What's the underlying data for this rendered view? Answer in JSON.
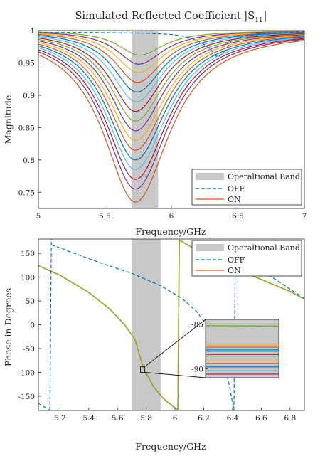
{
  "chart_data": [
    {
      "type": "line",
      "title": "Simulated Reflected Coefficient |S11|",
      "title_main": "Simulated Reflected Coefficient |S",
      "title_sub": "11",
      "title_end": "|",
      "xlabel": "Frequency/GHz",
      "ylabel": "Magnitude",
      "xlim": [
        5,
        7
      ],
      "ylim": [
        0.725,
        1.0
      ],
      "xticks": [
        5,
        5.5,
        6,
        6.5,
        7
      ],
      "yticks": [
        0.75,
        0.8,
        0.85,
        0.9,
        0.95,
        1
      ],
      "xtick_labels": [
        "5",
        "5.5",
        "6",
        "6.5",
        "7"
      ],
      "ytick_labels": [
        "0.75",
        "0.8",
        "0.85",
        "0.9",
        "0.95",
        "1"
      ],
      "band": [
        5.7,
        5.9
      ],
      "legend": [
        "Operaltional Band",
        "OFF",
        "ON"
      ],
      "legend_position": "bottom-right",
      "off_curve": {
        "x": [
          5,
          5.4,
          5.8,
          6.0,
          6.1,
          6.18,
          6.25,
          6.3,
          6.33,
          6.36,
          6.4,
          6.45,
          6.55,
          6.7,
          7.0
        ],
        "y": [
          0.997,
          0.997,
          0.996,
          0.994,
          0.991,
          0.986,
          0.978,
          0.97,
          0.961,
          0.96,
          0.968,
          0.984,
          0.992,
          0.996,
          0.998
        ]
      },
      "on_curves": {
        "resonance_ghz": [
          5.76,
          5.755,
          5.75,
          5.745,
          5.74,
          5.735,
          5.73,
          5.73,
          5.73,
          5.73,
          5.73,
          5.73,
          5.73,
          5.73,
          5.73,
          5.73
        ],
        "minimum": [
          0.962,
          0.948,
          0.935,
          0.92,
          0.905,
          0.89,
          0.875,
          0.86,
          0.845,
          0.83,
          0.815,
          0.8,
          0.785,
          0.77,
          0.755,
          0.735
        ],
        "colors": [
          "#77ac30",
          "#7e2f8e",
          "#edb120",
          "#d95319",
          "#0072bd",
          "#4dbeee",
          "#a2142f",
          "#77ac30",
          "#7e2f8e",
          "#edb120",
          "#d95319",
          "#0072bd",
          "#4dbeee",
          "#a2142f",
          "#7e2f8e",
          "#d95319"
        ]
      }
    },
    {
      "type": "line",
      "xlabel": "Frequency/GHz",
      "ylabel": "Phase in Degrees",
      "xlim": [
        5.05,
        6.9
      ],
      "ylim": [
        -180,
        180
      ],
      "xticks": [
        5.2,
        5.4,
        5.6,
        5.8,
        6,
        6.2,
        6.4,
        6.6,
        6.8
      ],
      "yticks": [
        -150,
        -100,
        -50,
        0,
        50,
        100,
        150
      ],
      "xtick_labels": [
        "5.2",
        "5.4",
        "5.6",
        "5.8",
        "6",
        "6.2",
        "6.4",
        "6.6",
        "6.8"
      ],
      "ytick_labels": [
        "-150",
        "-100",
        "-50",
        "0",
        "50",
        "100",
        "150"
      ],
      "band": [
        5.7,
        5.9
      ],
      "legend": [
        "Operaltional Band",
        "OFF",
        "ON"
      ],
      "legend_position": "top-right",
      "off_curve": {
        "segments": [
          {
            "x": [
              5.05,
              5.13
            ],
            "y": [
              -165,
              -180
            ]
          },
          {
            "x": [
              5.13,
              5.14
            ],
            "y": [
              -180,
              180
            ]
          },
          {
            "x": [
              5.14,
              5.3,
              5.5,
              5.7,
              5.9,
              6.05,
              6.15,
              6.22,
              6.28,
              6.33,
              6.38,
              6.41
            ],
            "y": [
              168,
              150,
              128,
              108,
              82,
              55,
              28,
              0,
              -30,
              -70,
              -130,
              -180
            ]
          },
          {
            "x": [
              6.41,
              6.42
            ],
            "y": [
              -180,
              170
            ]
          },
          {
            "x": [
              6.42,
              6.5,
              6.6,
              6.75,
              6.9
            ],
            "y": [
              170,
              140,
              115,
              85,
              55
            ]
          }
        ]
      },
      "on_curve": {
        "segments": [
          {
            "x": [
              5.05,
              5.2,
              5.4,
              5.55,
              5.65,
              5.72,
              5.78,
              5.85,
              5.92,
              5.98,
              6.02
            ],
            "y": [
              124,
              104,
              68,
              32,
              0,
              -30,
              -90,
              -130,
              -155,
              -170,
              -178
            ]
          },
          {
            "x": [
              6.02,
              6.03
            ],
            "y": [
              -178,
              178
            ]
          },
          {
            "x": [
              6.03,
              6.2,
              6.4,
              6.6,
              6.8,
              6.9
            ],
            "y": [
              178,
              148,
              120,
              95,
              70,
              54
            ]
          }
        ]
      },
      "inset": {
        "ylim": [
          -91,
          -84.5
        ],
        "tick_labels": [
          "-85",
          "-90"
        ],
        "tick_values": [
          -85,
          -90
        ],
        "line_levels": [
          -85.2,
          -87.4,
          -87.6,
          -87.9,
          -88.1,
          -88.4,
          -88.6,
          -88.9,
          -89.1,
          -89.4,
          -89.8,
          -90.2,
          -90.6,
          -91.0
        ],
        "zoom_x": [
          5.76,
          5.79
        ],
        "zoom_y": [
          -100,
          -88
        ]
      }
    }
  ]
}
